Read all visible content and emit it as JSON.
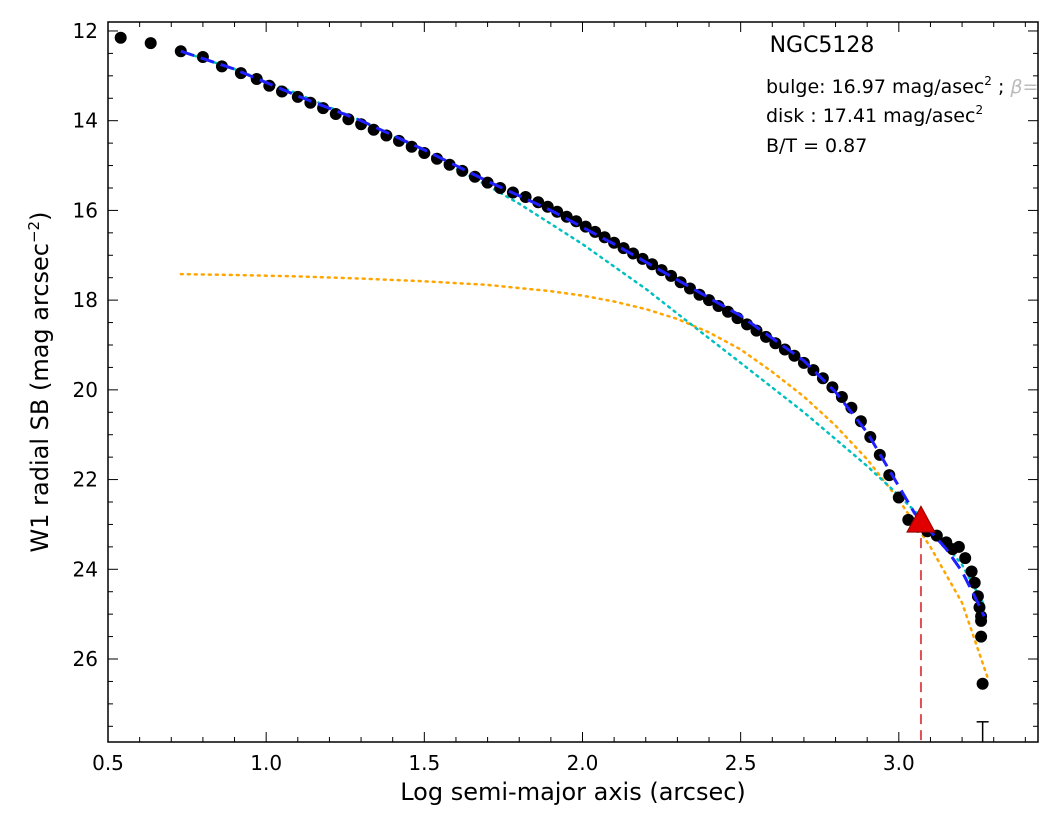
{
  "chart_data": {
    "type": "scatter",
    "title": "NGC5128",
    "xlabel": "Log semi-major axis (arcsec)",
    "ylabel_main": "W1 radial SB (mag arcsec",
    "ylabel_exp": "−2",
    "ylabel_close": ")",
    "xlim": [
      0.5,
      3.44
    ],
    "ylim": [
      27.85,
      11.8
    ],
    "y_inverted": true,
    "xticks": [
      0.5,
      1.0,
      1.5,
      2.0,
      2.5,
      3.0
    ],
    "xtick_labels": [
      "0.5",
      "1.0",
      "1.5",
      "2.0",
      "2.5",
      "3.0"
    ],
    "yticks": [
      12,
      14,
      16,
      18,
      20,
      22,
      24,
      26
    ],
    "ytick_labels": [
      "12",
      "14",
      "16",
      "18",
      "20",
      "22",
      "24",
      "26"
    ],
    "annotations": {
      "bulge": "bulge: 16.97 mag/asec",
      "bulge_exp": "2",
      "bulge_sep": " ; ",
      "beta_frag": "β=",
      "disk": "disk  : 17.41 mag/asec",
      "disk_exp": "2",
      "bt": "B/T = 0.87"
    },
    "colors": {
      "points": "#000000",
      "total_fit": "#1f1fff",
      "bulge_fit": "#00c0c0",
      "disk_fit": "#ffa500",
      "marker": "#e00000",
      "marker_line": "#e05050"
    },
    "series": [
      {
        "kind": "observed",
        "x": [
          0.54,
          0.635,
          0.73,
          0.8,
          0.86,
          0.92,
          0.97,
          1.01,
          1.05,
          1.1,
          1.14,
          1.18,
          1.22,
          1.26,
          1.3,
          1.34,
          1.38,
          1.42,
          1.46,
          1.5,
          1.54,
          1.58,
          1.62,
          1.66,
          1.7,
          1.74,
          1.78,
          1.82,
          1.86,
          1.89,
          1.92,
          1.95,
          1.98,
          2.01,
          2.04,
          2.07,
          2.1,
          2.13,
          2.16,
          2.19,
          2.22,
          2.25,
          2.28,
          2.31,
          2.34,
          2.37,
          2.4,
          2.43,
          2.46,
          2.49,
          2.52,
          2.55,
          2.58,
          2.61,
          2.64,
          2.67,
          2.7,
          2.73,
          2.76,
          2.79,
          2.82,
          2.85,
          2.88,
          2.91,
          2.94,
          2.97,
          3.0,
          3.03,
          3.06,
          3.09,
          3.12,
          3.15,
          3.17,
          3.19,
          3.21,
          3.23,
          3.24,
          3.25,
          3.255,
          3.26,
          3.26,
          3.26,
          3.265
        ],
        "y": [
          12.15,
          12.27,
          12.45,
          12.58,
          12.79,
          12.94,
          13.07,
          13.22,
          13.35,
          13.47,
          13.6,
          13.72,
          13.85,
          13.97,
          14.08,
          14.2,
          14.33,
          14.45,
          14.58,
          14.72,
          14.85,
          14.98,
          15.12,
          15.25,
          15.38,
          15.5,
          15.6,
          15.7,
          15.82,
          15.92,
          16.03,
          16.14,
          16.24,
          16.36,
          16.48,
          16.6,
          16.72,
          16.84,
          16.96,
          17.08,
          17.2,
          17.33,
          17.46,
          17.6,
          17.74,
          17.88,
          18.0,
          18.13,
          18.26,
          18.4,
          18.54,
          18.68,
          18.82,
          18.96,
          19.1,
          19.24,
          19.4,
          19.56,
          19.74,
          19.94,
          20.16,
          20.4,
          20.7,
          21.05,
          21.45,
          21.9,
          22.4,
          22.9,
          23.05,
          23.15,
          23.25,
          23.4,
          23.55,
          23.5,
          23.75,
          24.05,
          24.3,
          24.6,
          24.85,
          25.05,
          25.15,
          25.5,
          26.55
        ]
      },
      {
        "kind": "total_fit",
        "x": [
          0.73,
          0.9,
          1.1,
          1.3,
          1.5,
          1.7,
          1.9,
          2.1,
          2.3,
          2.5,
          2.7,
          2.8,
          2.9,
          3.0,
          3.05,
          3.1,
          3.15,
          3.2,
          3.25,
          3.27
        ],
        "y": [
          12.45,
          12.85,
          13.45,
          14.0,
          14.65,
          15.35,
          16.0,
          16.75,
          17.55,
          18.35,
          19.35,
          20.05,
          20.95,
          22.15,
          22.75,
          23.15,
          23.55,
          24.05,
          24.75,
          25.05
        ]
      },
      {
        "kind": "bulge_fit",
        "x": [
          0.73,
          0.9,
          1.1,
          1.3,
          1.5,
          1.7,
          1.8,
          1.9,
          2.0,
          2.1,
          2.2,
          2.3,
          2.4,
          2.5,
          2.6,
          2.7,
          2.8,
          2.9,
          3.0,
          3.1,
          3.2,
          3.27
        ],
        "y": [
          12.45,
          12.85,
          13.4,
          14.0,
          14.7,
          15.45,
          15.85,
          16.3,
          16.75,
          17.25,
          17.75,
          18.3,
          18.85,
          19.4,
          19.95,
          20.5,
          21.1,
          21.7,
          22.35,
          23.05,
          23.9,
          24.8
        ]
      },
      {
        "kind": "disk_fit",
        "x": [
          0.73,
          0.9,
          1.1,
          1.3,
          1.5,
          1.7,
          1.9,
          2.0,
          2.1,
          2.2,
          2.3,
          2.4,
          2.5,
          2.6,
          2.7,
          2.8,
          2.9,
          3.0,
          3.1,
          3.2,
          3.28
        ],
        "y": [
          17.42,
          17.44,
          17.47,
          17.52,
          17.58,
          17.66,
          17.8,
          17.9,
          18.03,
          18.2,
          18.42,
          18.72,
          19.1,
          19.6,
          20.15,
          20.8,
          21.55,
          22.45,
          23.5,
          24.75,
          26.4
        ]
      }
    ],
    "errorbar": {
      "x": 3.265,
      "y_low": 27.4,
      "y_high": 27.85
    },
    "marker_point": {
      "x": 3.07,
      "y": 22.95
    }
  }
}
